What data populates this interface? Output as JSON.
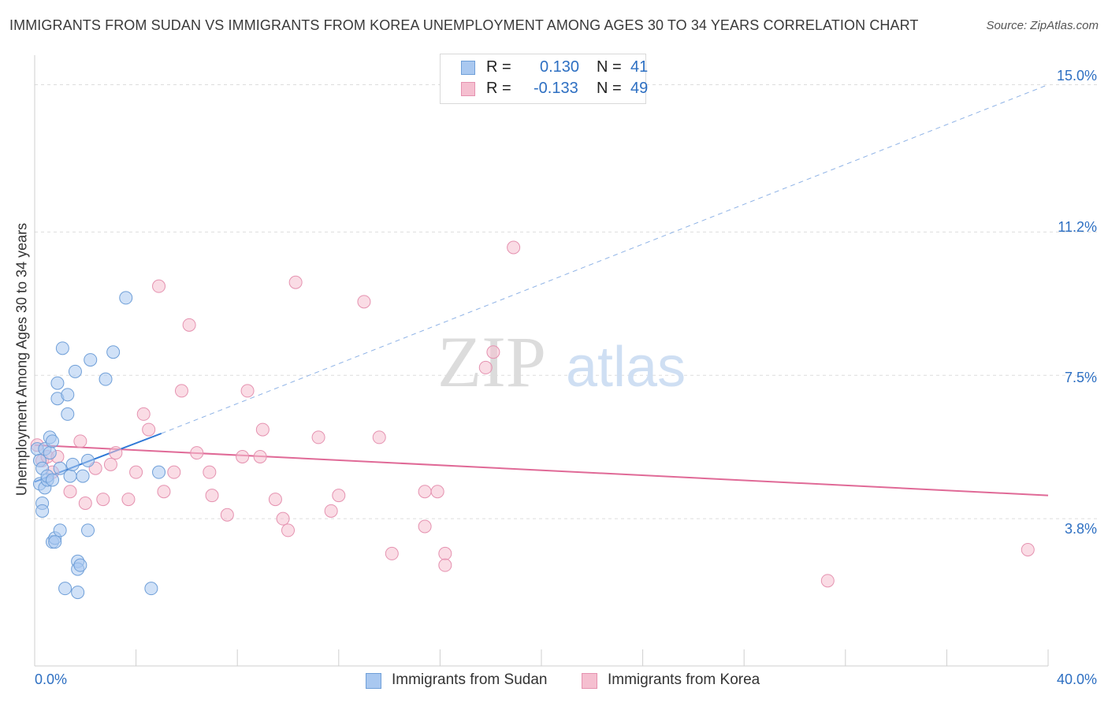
{
  "header": {
    "title": "IMMIGRANTS FROM SUDAN VS IMMIGRANTS FROM KOREA UNEMPLOYMENT AMONG AGES 30 TO 34 YEARS CORRELATION CHART",
    "source": "Source: ZipAtlas.com"
  },
  "watermark": {
    "zip": "ZIP",
    "atlas": "atlas"
  },
  "legend": {
    "sudan": {
      "r_label": "R =",
      "r_value": "0.130",
      "n_label": "N =",
      "n_value": "41"
    },
    "korea": {
      "r_label": "R =",
      "r_value": "-0.133",
      "n_label": "N =",
      "n_value": "49"
    }
  },
  "colors": {
    "sudan_fill": "#a9c8f0",
    "sudan_stroke": "#6f9fd8",
    "sudan_line": "#2f78d6",
    "korea_fill": "#f5bfd0",
    "korea_stroke": "#e592b0",
    "korea_line": "#e06a97",
    "accent_text": "#2d6fc2",
    "grid": "#dddddd"
  },
  "chart_data": {
    "type": "scatter",
    "title": "IMMIGRANTS FROM SUDAN VS IMMIGRANTS FROM KOREA UNEMPLOYMENT AMONG AGES 30 TO 34 YEARS CORRELATION CHART",
    "xlabel": "",
    "ylabel": "Unemployment Among Ages 30 to 34 years",
    "xlim": [
      0,
      40
    ],
    "ylim": [
      0,
      15.6
    ],
    "x_tick_labels": [
      "0.0%",
      "40.0%"
    ],
    "y_ticks": [
      3.8,
      7.5,
      11.2,
      15.0
    ],
    "y_tick_labels": [
      "3.8%",
      "7.5%",
      "11.2%",
      "15.0%"
    ],
    "series": [
      {
        "name": "Immigrants from Sudan",
        "points": [
          [
            0.1,
            5.6
          ],
          [
            0.2,
            5.3
          ],
          [
            0.2,
            4.7
          ],
          [
            0.3,
            5.1
          ],
          [
            0.3,
            4.2
          ],
          [
            0.3,
            4.0
          ],
          [
            0.4,
            5.6
          ],
          [
            0.4,
            4.6
          ],
          [
            0.5,
            4.8
          ],
          [
            0.5,
            4.9
          ],
          [
            0.6,
            5.5
          ],
          [
            0.6,
            5.9
          ],
          [
            0.7,
            5.8
          ],
          [
            0.7,
            4.8
          ],
          [
            0.7,
            3.2
          ],
          [
            0.8,
            3.3
          ],
          [
            0.8,
            3.2
          ],
          [
            0.9,
            6.9
          ],
          [
            0.9,
            7.3
          ],
          [
            1.0,
            5.1
          ],
          [
            1.0,
            3.5
          ],
          [
            1.1,
            8.2
          ],
          [
            1.2,
            2.0
          ],
          [
            1.3,
            7.0
          ],
          [
            1.3,
            6.5
          ],
          [
            1.4,
            4.9
          ],
          [
            1.5,
            5.2
          ],
          [
            1.6,
            7.6
          ],
          [
            1.7,
            1.9
          ],
          [
            1.7,
            2.7
          ],
          [
            1.7,
            2.5
          ],
          [
            1.8,
            2.6
          ],
          [
            1.9,
            4.9
          ],
          [
            2.1,
            5.3
          ],
          [
            2.1,
            3.5
          ],
          [
            2.2,
            7.9
          ],
          [
            2.8,
            7.4
          ],
          [
            3.1,
            8.1
          ],
          [
            3.6,
            9.5
          ],
          [
            4.6,
            2.0
          ],
          [
            4.9,
            5.0
          ]
        ],
        "trend": {
          "x": [
            0,
            5.0
          ],
          "y": [
            4.75,
            6.0
          ]
        },
        "trend_extension": {
          "x": [
            5.0,
            40
          ],
          "y": [
            6.0,
            15.0
          ]
        }
      },
      {
        "name": "Immigrants from Korea",
        "points": [
          [
            0.1,
            5.7
          ],
          [
            0.3,
            5.3
          ],
          [
            0.5,
            5.4
          ],
          [
            0.7,
            5.0
          ],
          [
            0.9,
            5.4
          ],
          [
            1.4,
            4.5
          ],
          [
            1.8,
            5.8
          ],
          [
            2.0,
            4.2
          ],
          [
            2.4,
            5.1
          ],
          [
            2.7,
            4.3
          ],
          [
            3.0,
            5.2
          ],
          [
            3.2,
            5.5
          ],
          [
            3.7,
            4.3
          ],
          [
            4.0,
            5.0
          ],
          [
            4.3,
            6.5
          ],
          [
            4.5,
            6.1
          ],
          [
            4.9,
            9.8
          ],
          [
            5.1,
            4.5
          ],
          [
            5.5,
            5.0
          ],
          [
            5.8,
            7.1
          ],
          [
            6.1,
            8.8
          ],
          [
            6.4,
            5.5
          ],
          [
            6.9,
            5.0
          ],
          [
            7.0,
            4.4
          ],
          [
            7.6,
            3.9
          ],
          [
            8.2,
            5.4
          ],
          [
            8.4,
            7.1
          ],
          [
            8.9,
            5.4
          ],
          [
            9.0,
            6.1
          ],
          [
            9.5,
            4.3
          ],
          [
            9.8,
            3.8
          ],
          [
            10.0,
            3.5
          ],
          [
            10.3,
            9.9
          ],
          [
            11.2,
            5.9
          ],
          [
            11.7,
            4.0
          ],
          [
            12.0,
            4.4
          ],
          [
            13.0,
            9.4
          ],
          [
            13.6,
            5.9
          ],
          [
            14.1,
            2.9
          ],
          [
            15.4,
            3.6
          ],
          [
            15.4,
            4.5
          ],
          [
            15.9,
            4.5
          ],
          [
            16.2,
            2.9
          ],
          [
            16.2,
            2.6
          ],
          [
            17.8,
            7.7
          ],
          [
            18.1,
            8.1
          ],
          [
            18.9,
            10.8
          ],
          [
            31.3,
            2.2
          ],
          [
            39.2,
            3.0
          ]
        ],
        "trend": {
          "x": [
            0,
            40
          ],
          "y": [
            5.7,
            4.4
          ]
        }
      }
    ]
  }
}
